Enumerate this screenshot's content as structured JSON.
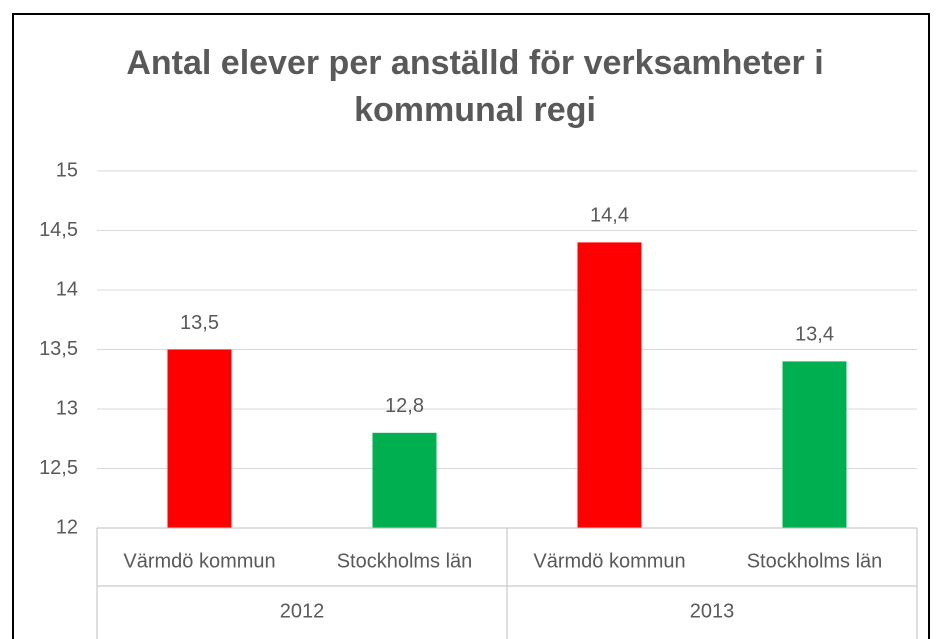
{
  "chart_data": {
    "type": "bar",
    "title": "Antal elever per anställd för verksamheter i kommunal regi",
    "categories": [
      "Värmdö kommun",
      "Stockholms län",
      "Värmdö kommun",
      "Stockholms län"
    ],
    "groups": [
      "2012",
      "2013"
    ],
    "values": [
      13.5,
      12.8,
      14.4,
      13.4
    ],
    "value_labels": [
      "13,5",
      "12,8",
      "14,4",
      "13,4"
    ],
    "colors": [
      "#ff0000",
      "#00b050",
      "#ff0000",
      "#00b050"
    ],
    "ylim": [
      12,
      15
    ],
    "yticks": [
      12,
      {
        "value": 12.5,
        "label": "12,5"
      },
      13,
      {
        "value": 13.5,
        "label": "13,5"
      },
      14,
      {
        "value": 14.5,
        "label": "14,5"
      },
      15
    ],
    "grid": true
  }
}
